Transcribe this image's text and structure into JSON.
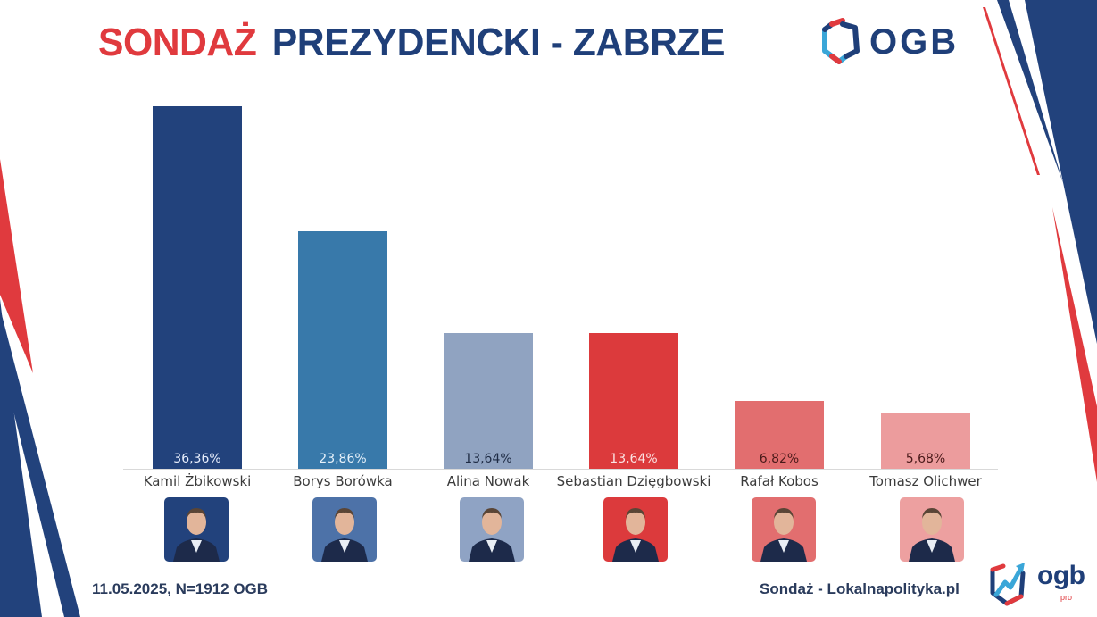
{
  "header": {
    "title_red": "SONDAŻ",
    "title_blue": "PREZYDENCKI - ZABRZE",
    "logo_text": "OGB"
  },
  "footer": {
    "left_text": "11.05.2025, N=1912 OGB",
    "right_text": "Sondaż - Lokalnapolityka.pl",
    "logo_text": "ogb",
    "logo_sub": "pro"
  },
  "colors": {
    "brand_blue": "#1f3f79",
    "brand_red": "#e03a3e",
    "brand_cyan": "#3aa6d8"
  },
  "bars": [
    {
      "name": "Kamil Żbikowski",
      "label": "36,36%",
      "value": 36.36,
      "color": "#22427c",
      "text_color": "#e8eefc",
      "photo_bg": "#22427c"
    },
    {
      "name": "Borys Borówka",
      "label": "23,86%",
      "value": 23.86,
      "color": "#3879aa",
      "text_color": "#e6f1fa",
      "photo_bg": "#4d72a8"
    },
    {
      "name": "Alina Nowak",
      "label": "13,64%",
      "value": 13.64,
      "color": "#90a3c1",
      "text_color": "#1e2b44",
      "photo_bg": "#8fa3c4"
    },
    {
      "name": "Sebastian Dzięgbowski",
      "label": "13,64%",
      "value": 13.64,
      "color": "#dc3a3c",
      "text_color": "#fbe3e3",
      "photo_bg": "#dc3a3c"
    },
    {
      "name": "Rafał Kobos",
      "label": "6,82%",
      "value": 6.82,
      "color": "#e26e6f",
      "text_color": "#4a1a1a",
      "photo_bg": "#e26e6f"
    },
    {
      "name": "Tomasz Olichwer",
      "label": "5,68%",
      "value": 5.68,
      "color": "#ec9c9d",
      "text_color": "#4a1a1a",
      "photo_bg": "#eda0a0"
    }
  ],
  "chart_data": {
    "type": "bar",
    "title": "SONDAŻ PREZYDENCKI - ZABRZE",
    "subtitle": "11.05.2025, N=1912 OGB",
    "categories": [
      "Kamil Żbikowski",
      "Borys Borówka",
      "Alina Nowak",
      "Sebastian Dzięgbowski",
      "Rafał Kobos",
      "Tomasz Olichwer"
    ],
    "values": [
      36.36,
      23.86,
      13.64,
      13.64,
      6.82,
      5.68
    ],
    "value_labels": [
      "36,36%",
      "23,86%",
      "13,64%",
      "13,64%",
      "6,82%",
      "5,68%"
    ],
    "xlabel": "",
    "ylabel": "",
    "ylim": [
      0,
      40
    ],
    "grid": false,
    "legend": "none",
    "source": "Sondaż - Lokalnapolityka.pl"
  }
}
